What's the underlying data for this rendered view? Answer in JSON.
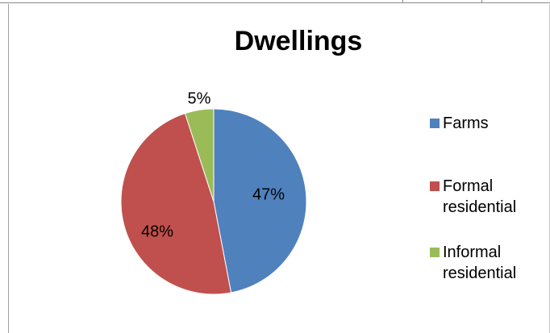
{
  "chart_data": {
    "type": "pie",
    "title": "Dwellings",
    "categories": [
      "Farms",
      "Formal residential",
      "Informal residential"
    ],
    "values": [
      47,
      48,
      5
    ],
    "data_labels": [
      "47%",
      "48%",
      "5%"
    ],
    "colors": [
      "#4F81BD",
      "#C0504D",
      "#9BBB59"
    ],
    "legend_position": "right"
  }
}
